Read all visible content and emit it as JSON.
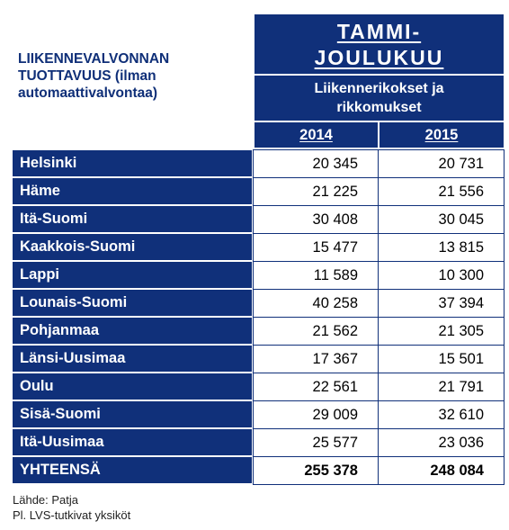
{
  "title_lines": [
    "LIIKENNEVALVONNAN",
    "TUOTTAVUUS (ilman",
    "automaattivalvontaa)"
  ],
  "period": {
    "line1": "TAMMI-",
    "line2": "JOULUKUU"
  },
  "measure": {
    "line1": "Liikennerikokset ja",
    "line2": "rikkomukset"
  },
  "years": [
    "2014",
    "2015"
  ],
  "rows": [
    {
      "region": "Helsinki",
      "v2014": "20 345",
      "v2015": "20 731"
    },
    {
      "region": "Häme",
      "v2014": "21 225",
      "v2015": "21 556"
    },
    {
      "region": "Itä-Suomi",
      "v2014": "30 408",
      "v2015": "30 045"
    },
    {
      "region": "Kaakkois-Suomi",
      "v2014": "15 477",
      "v2015": "13 815"
    },
    {
      "region": "Lappi",
      "v2014": "11 589",
      "v2015": "10 300"
    },
    {
      "region": "Lounais-Suomi",
      "v2014": "40 258",
      "v2015": "37 394"
    },
    {
      "region": "Pohjanmaa",
      "v2014": "21 562",
      "v2015": "21 305"
    },
    {
      "region": "Länsi-Uusimaa",
      "v2014": "17 367",
      "v2015": "15 501"
    },
    {
      "region": "Oulu",
      "v2014": "22 561",
      "v2015": "21 791"
    },
    {
      "region": "Sisä-Suomi",
      "v2014": "29 009",
      "v2015": "32 610"
    },
    {
      "region": "Itä-Uusimaa",
      "v2014": "25 577",
      "v2015": "23 036"
    }
  ],
  "total": {
    "label": "YHTEENSÄ",
    "v2014": "255 378",
    "v2015": "248 084"
  },
  "source_lines": [
    "Lähde: Patja",
    "Pl. LVS-tutkivat yksiköt"
  ],
  "colors": {
    "header_navy": "#10307a",
    "title_blue": "#0f2f78"
  }
}
